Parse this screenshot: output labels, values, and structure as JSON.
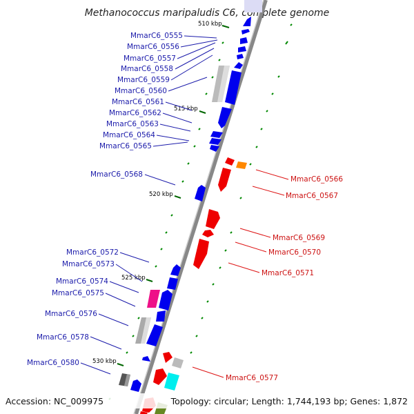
{
  "title": "Methanococcus maripaludis C6, complete genome",
  "footer": {
    "accession": "Accession: NC_009975",
    "summary": "Topology: circular; Length: 1,744,193 bp; Genes: 1,872"
  },
  "colors": {
    "forward": "#0000ee",
    "reverse": "#ee0000",
    "backbone": "#888888",
    "tick": "#006600",
    "forward_label": "#1a1aaa",
    "reverse_label": "#cc1111"
  },
  "scale_labels": [
    "510 kbp",
    "515 kbp",
    "520 kbp",
    "525 kbp",
    "530 kbp"
  ],
  "forward_gene_labels": [
    "MmarC6_0555",
    "MmarC6_0556",
    "MmarC6_0557",
    "MmarC6_0558",
    "MmarC6_0559",
    "MmarC6_0560",
    "MmarC6_0561",
    "MmarC6_0562",
    "MmarC6_0563",
    "MmarC6_0564",
    "MmarC6_0565",
    "MmarC6_0568",
    "MmarC6_0572",
    "MmarC6_0573",
    "MmarC6_0574",
    "MmarC6_0575",
    "MmarC6_0576",
    "MmarC6_0578",
    "MmarC6_0580"
  ],
  "reverse_gene_labels": [
    "MmarC6_0566",
    "MmarC6_0567",
    "MmarC6_0569",
    "MmarC6_0570",
    "MmarC6_0571",
    "MmarC6_0577"
  ]
}
